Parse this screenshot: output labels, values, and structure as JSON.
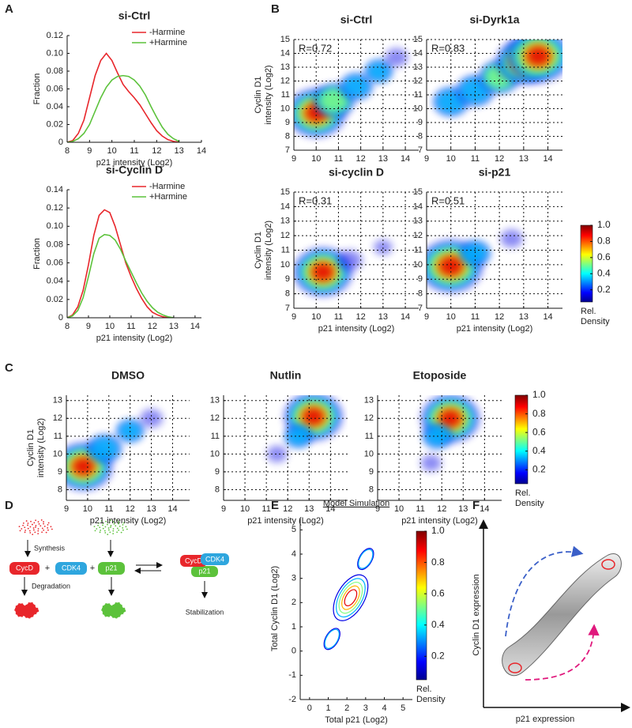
{
  "panel_labels": [
    "A",
    "B",
    "C",
    "D",
    "E",
    "F"
  ],
  "chart_data": [
    {
      "type": "line",
      "title": "si-Ctrl",
      "xlabel": "p21 intensity (Log2)",
      "ylabel": [
        "Fraction"
      ],
      "x": [
        8,
        8.25,
        8.5,
        8.75,
        9,
        9.25,
        9.5,
        9.75,
        10,
        10.25,
        10.5,
        10.75,
        11,
        11.25,
        11.5,
        11.75,
        12,
        12.25,
        12.5,
        12.75,
        13
      ],
      "series": [
        {
          "name": "-Harmine",
          "color": "#e8262b",
          "values": [
            0,
            0.002,
            0.01,
            0.025,
            0.05,
            0.075,
            0.092,
            0.1,
            0.092,
            0.078,
            0.065,
            0.057,
            0.05,
            0.042,
            0.032,
            0.022,
            0.013,
            0.007,
            0.003,
            0.001,
            0
          ]
        },
        {
          "name": "+Harmine",
          "color": "#5cc23b",
          "values": [
            0,
            0.001,
            0.004,
            0.01,
            0.02,
            0.035,
            0.05,
            0.062,
            0.07,
            0.074,
            0.075,
            0.074,
            0.07,
            0.063,
            0.053,
            0.04,
            0.028,
            0.017,
            0.009,
            0.004,
            0.001
          ]
        }
      ],
      "xlim": [
        8,
        14
      ],
      "xticks": [
        8,
        9,
        10,
        11,
        12,
        13,
        14
      ],
      "ylim": [
        0,
        0.12
      ],
      "yticks": [
        0,
        0.02,
        0.04,
        0.06,
        0.08,
        {
          "value": 0.1,
          "label": "0.10"
        },
        0.12
      ],
      "grid": false
    },
    {
      "type": "line",
      "title": "si-Cyclin D",
      "xlabel": "p21 intensity (Log2)",
      "ylabel": [
        "Fraction"
      ],
      "x": [
        8,
        8.25,
        8.5,
        8.75,
        9,
        9.25,
        9.5,
        9.75,
        10,
        10.25,
        10.5,
        10.75,
        11,
        11.25,
        11.5,
        11.75,
        12,
        12.25,
        12.5,
        12.75,
        13
      ],
      "series": [
        {
          "name": "-Harmine",
          "color": "#e8262b",
          "values": [
            0,
            0.003,
            0.012,
            0.03,
            0.058,
            0.09,
            0.112,
            0.118,
            0.115,
            0.1,
            0.08,
            0.06,
            0.045,
            0.032,
            0.021,
            0.012,
            0.006,
            0.003,
            0.001,
            0,
            0
          ]
        },
        {
          "name": "+Harmine",
          "color": "#5cc23b",
          "values": [
            0,
            0.002,
            0.008,
            0.022,
            0.045,
            0.07,
            0.087,
            0.091,
            0.09,
            0.085,
            0.075,
            0.062,
            0.05,
            0.038,
            0.027,
            0.018,
            0.011,
            0.006,
            0.003,
            0.001,
            0
          ]
        }
      ],
      "xlim": [
        8,
        14.3
      ],
      "xticks": [
        8,
        9,
        10,
        11,
        12,
        13,
        14
      ],
      "ylim": [
        0,
        0.14
      ],
      "yticks": [
        0,
        0.02,
        0.04,
        0.06,
        0.08,
        {
          "value": 0.1,
          "label": "0.10"
        },
        0.12,
        0.14
      ],
      "grid": false
    },
    {
      "type": "density",
      "title": "si-Ctrl",
      "annotation": "R=0.72",
      "ylabel": [
        "Cyclin D1",
        "intensity (Log2)"
      ],
      "x": [
        10,
        10.8,
        11.8,
        12.8,
        13.6
      ],
      "y": [
        9.7,
        10.6,
        11.6,
        12.7,
        13.7
      ],
      "density": [
        1,
        0.6,
        0.4,
        0.3,
        0.2
      ],
      "xlim": [
        9,
        14.6
      ],
      "xticks": [
        9,
        10,
        11,
        12,
        13,
        14
      ],
      "ylim": [
        7,
        15
      ],
      "yticks": [
        7,
        8,
        9,
        10,
        11,
        12,
        13,
        14,
        15
      ],
      "grid": true
    },
    {
      "type": "density",
      "title": "si-Dyrk1a",
      "annotation": "R=0.83",
      "x": [
        10,
        11,
        12,
        13,
        13.6
      ],
      "y": [
        10.5,
        11.3,
        12.3,
        13.4,
        13.8
      ],
      "density": [
        0.4,
        0.45,
        0.5,
        0.8,
        1
      ],
      "xlim": [
        9,
        14.6
      ],
      "xticks": [
        9,
        10,
        11,
        12,
        13,
        14
      ],
      "ylim": [
        7,
        15
      ],
      "yticks": [
        7,
        8,
        9,
        10,
        11,
        12,
        13,
        14,
        15
      ],
      "grid": true
    },
    {
      "type": "density",
      "title": "si-cyclin D",
      "annotation": "R=0.31",
      "xlabel": "p21 intensity (Log2)",
      "ylabel": [
        "Cyclin D1",
        "intensity (Log2)"
      ],
      "x": [
        10.3,
        11.5,
        13
      ],
      "y": [
        9.5,
        10.3,
        11.2
      ],
      "density": [
        1,
        0.25,
        0.1
      ],
      "xlim": [
        9,
        14.6
      ],
      "xticks": [
        9,
        10,
        11,
        12,
        13,
        14
      ],
      "ylim": [
        7,
        15
      ],
      "yticks": [
        7,
        8,
        9,
        10,
        11,
        12,
        13,
        14,
        15
      ],
      "grid": true
    },
    {
      "type": "density",
      "title": "si-p21",
      "annotation": "R=0.51",
      "xlabel": "p21 intensity (Log2)",
      "x": [
        10,
        11,
        12.5
      ],
      "y": [
        9.9,
        10.8,
        11.8
      ],
      "density": [
        1,
        0.3,
        0.15
      ],
      "xlim": [
        9,
        14.6
      ],
      "xticks": [
        9,
        10,
        11,
        12,
        13,
        14
      ],
      "ylim": [
        7,
        15
      ],
      "yticks": [
        7,
        8,
        9,
        10,
        11,
        12,
        13,
        14,
        15
      ],
      "grid": true,
      "colorbar": {
        "clim": [
          0.05,
          1
        ],
        "ticks": [
          0.2,
          0.4,
          0.6,
          0.8,
          {
            "value": 1,
            "label": "1.0"
          }
        ],
        "label": [
          "Rel.",
          "Density"
        ]
      }
    },
    {
      "type": "density",
      "title": "DMSO",
      "xlabel": "p21 intensity (Log2)",
      "ylabel": [
        "Cyclin D1",
        "intensity (Log2)"
      ],
      "x": [
        9.8,
        10.8,
        12,
        13
      ],
      "y": [
        9.3,
        10.3,
        11.3,
        12
      ],
      "density": [
        1,
        0.45,
        0.3,
        0.2
      ],
      "xlim": [
        9,
        14.8
      ],
      "xticks": [
        9,
        10,
        11,
        12,
        13,
        14
      ],
      "ylim": [
        7.4,
        13.3
      ],
      "yticks": [
        8,
        9,
        10,
        11,
        12,
        13
      ],
      "grid": true
    },
    {
      "type": "density",
      "title": "Nutlin",
      "xlabel": "p21 intensity (Log2)",
      "x": [
        13.2,
        12.5,
        11.5
      ],
      "y": [
        12.1,
        11,
        10
      ],
      "density": [
        1,
        0.3,
        0.15
      ],
      "xlim": [
        9,
        14.8
      ],
      "xticks": [
        9,
        10,
        11,
        12,
        13,
        14
      ],
      "ylim": [
        7.4,
        13.3
      ],
      "yticks": [
        8,
        9,
        10,
        11,
        12,
        13
      ],
      "grid": true
    },
    {
      "type": "density",
      "title": "Etoposide",
      "xlabel": "p21 intensity (Log2)",
      "x": [
        12.4,
        11.8,
        11.5
      ],
      "y": [
        12,
        11,
        9.5
      ],
      "density": [
        1,
        0.35,
        0.15
      ],
      "xlim": [
        9,
        14.8
      ],
      "xticks": [
        9,
        10,
        11,
        12,
        13,
        14
      ],
      "ylim": [
        7.4,
        13.3
      ],
      "yticks": [
        8,
        9,
        10,
        11,
        12,
        13
      ],
      "grid": true,
      "colorbar": {
        "clim": [
          0.05,
          1
        ],
        "ticks": [
          0.2,
          0.4,
          0.6,
          0.8,
          {
            "value": 1,
            "label": "1.0"
          }
        ],
        "label": [
          "Rel.",
          "Density"
        ]
      }
    },
    {
      "type": "contour",
      "title": "Model Simulation",
      "xlabel": "Total p21 (Log2)",
      "ylabel": [
        "Total Cyclin D1 (Log2)"
      ],
      "x": [
        2.2,
        1.2,
        3
      ],
      "y": [
        2.2,
        0.5,
        3.8
      ],
      "density": [
        1,
        0.3,
        0.3
      ],
      "xlim": [
        -0.5,
        5.5
      ],
      "xticks": [
        0,
        1,
        2,
        3,
        4,
        5
      ],
      "ylim": [
        -2,
        5.5
      ],
      "yticks": [
        -2,
        -1,
        0,
        1,
        2,
        3,
        4,
        5
      ],
      "grid": false,
      "colorbar": {
        "clim": [
          0.05,
          1
        ],
        "ticks": [
          0.2,
          0.4,
          0.6,
          0.8,
          {
            "value": 1,
            "label": "1.0"
          }
        ],
        "label": [
          "Rel.",
          "Density"
        ]
      }
    }
  ],
  "diagram_d": {
    "synthesis": "Synthesis",
    "degradation": "Degradation",
    "cycd": "CycD",
    "cdk4": "CDK4",
    "p21": "p21",
    "plus": "+",
    "complex_cycd": "CycD",
    "complex_cdk4": "CDK4",
    "complex_p21": "p21",
    "stabilization": "Stabilization"
  },
  "diagram_f": {
    "ylabel": "Cyclin D1 expression",
    "xlabel": "p21 expression"
  }
}
